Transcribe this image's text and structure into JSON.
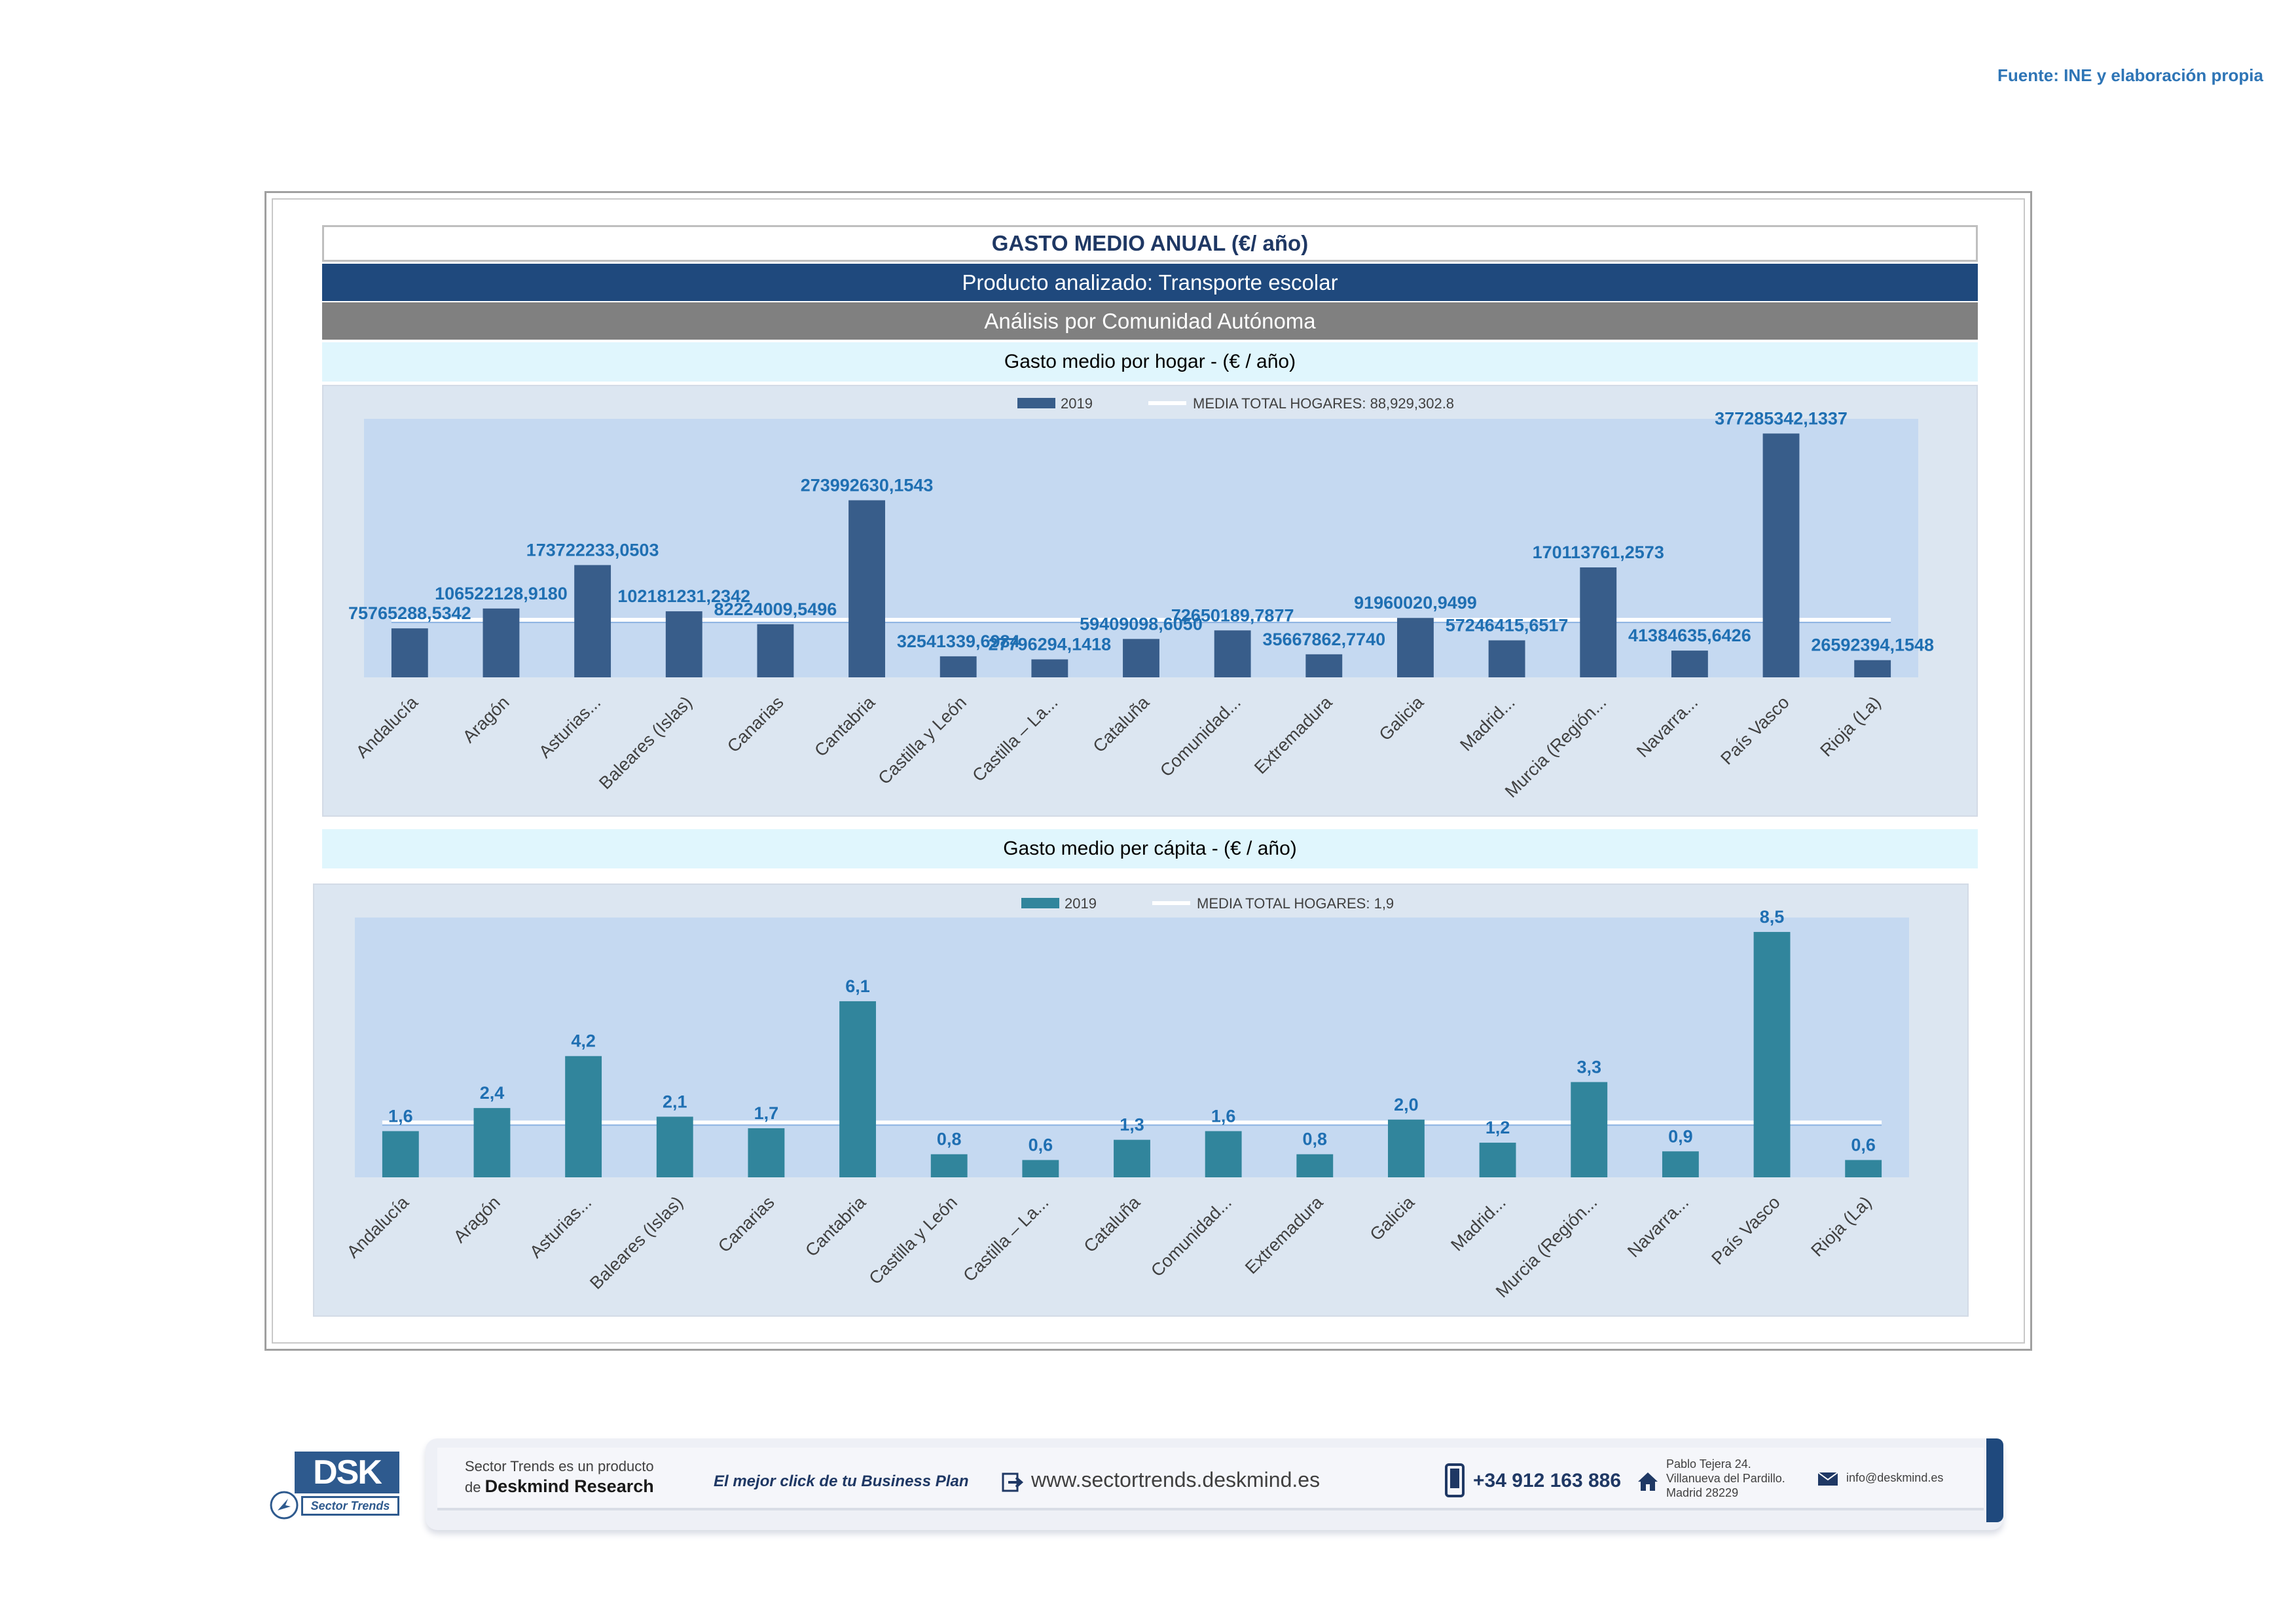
{
  "source": "Fuente: INE y elaboración propia",
  "header": {
    "title": "GASTO MEDIO ANUAL (€/ año)",
    "product": "Producto analizado: Transporte escolar",
    "analysis": "Análisis por Comunidad Autónoma"
  },
  "chart_data": [
    {
      "type": "bar",
      "title": "Gasto medio por hogar -  (€ / año)",
      "legend": {
        "series_label": "2019",
        "mean_label": "MEDIA TOTAL  HOGARES:   88,929,302.8",
        "placement": "top"
      },
      "categories": [
        "Andalucía",
        "Aragón",
        "Asturias...",
        "Baleares (Islas)",
        "Canarias",
        "Cantabria",
        "Castilla y León",
        "Castilla – La...",
        "Cataluña",
        "Comunidad...",
        "Extremadura",
        "Galicia",
        "Madrid...",
        "Murcia (Región...",
        "Navarra...",
        "País Vasco",
        "Rioja (La)"
      ],
      "values": [
        75765288.5342,
        106522128.918,
        173722233.0503,
        102181231.2342,
        82224009.5496,
        273992630.1543,
        32541339.6984,
        27796294.1418,
        59409098.605,
        72650189.7877,
        35667862.774,
        91960020.9499,
        57246415.6517,
        170113761.2573,
        41384635.6426,
        377285342.1337,
        26592394.1548
      ],
      "labels": [
        "75765288,5342",
        "106522128,9180",
        "173722233,0503",
        "102181231,2342",
        "82224009,5496",
        "273992630,1543",
        "32541339,6984",
        "27796294,1418",
        "59409098,6050",
        "72650189,7877",
        "35667862,7740",
        "91960020,9499",
        "57246415,6517",
        "170113761,2573",
        "41384635,6426",
        "377285342,1337",
        "26592394,1548"
      ],
      "mean": 88929302.8,
      "ylim": [
        0,
        400000000
      ],
      "bar_color": "#385d8a",
      "grid": false
    },
    {
      "type": "bar",
      "title": "Gasto medio per cápita -  (€ / año)",
      "legend": {
        "series_label": "2019",
        "mean_label": "MEDIA TOTAL  HOGARES:   1,9",
        "placement": "top"
      },
      "categories": [
        "Andalucía",
        "Aragón",
        "Asturias...",
        "Baleares (Islas)",
        "Canarias",
        "Cantabria",
        "Castilla y León",
        "Castilla – La...",
        "Cataluña",
        "Comunidad...",
        "Extremadura",
        "Galicia",
        "Madrid...",
        "Murcia (Región...",
        "Navarra...",
        "País Vasco",
        "Rioja (La)"
      ],
      "values": [
        1.6,
        2.4,
        4.2,
        2.1,
        1.7,
        6.1,
        0.8,
        0.6,
        1.3,
        1.6,
        0.8,
        2.0,
        1.2,
        3.3,
        0.9,
        8.5,
        0.6
      ],
      "labels": [
        "1,6",
        "2,4",
        "4,2",
        "2,1",
        "1,7",
        "6,1",
        "0,8",
        "0,6",
        "1,3",
        "1,6",
        "0,8",
        "2,0",
        "1,2",
        "3,3",
        "0,9",
        "8,5",
        "0,6"
      ],
      "mean": 1.9,
      "ylim": [
        0,
        9
      ],
      "bar_color": "#31859c",
      "grid": false
    }
  ],
  "footer": {
    "logo_text": "DSK",
    "logo_sub": "Sector Trends",
    "product_line1": "Sector Trends es un producto",
    "product_line2_prefix": "de",
    "product_line2_brand": "Deskmind Research",
    "slogan": "El mejor click de tu Business Plan",
    "url": "www.sectortrends.deskmind.es",
    "phone": "+34 912 163 886",
    "address_line1": "Pablo Tejera 24.",
    "address_line2": "Villanueva del Pardillo.",
    "address_line3": "Madrid 28229",
    "email": "info@deskmind.es",
    "accent_color": "#1f497d"
  }
}
